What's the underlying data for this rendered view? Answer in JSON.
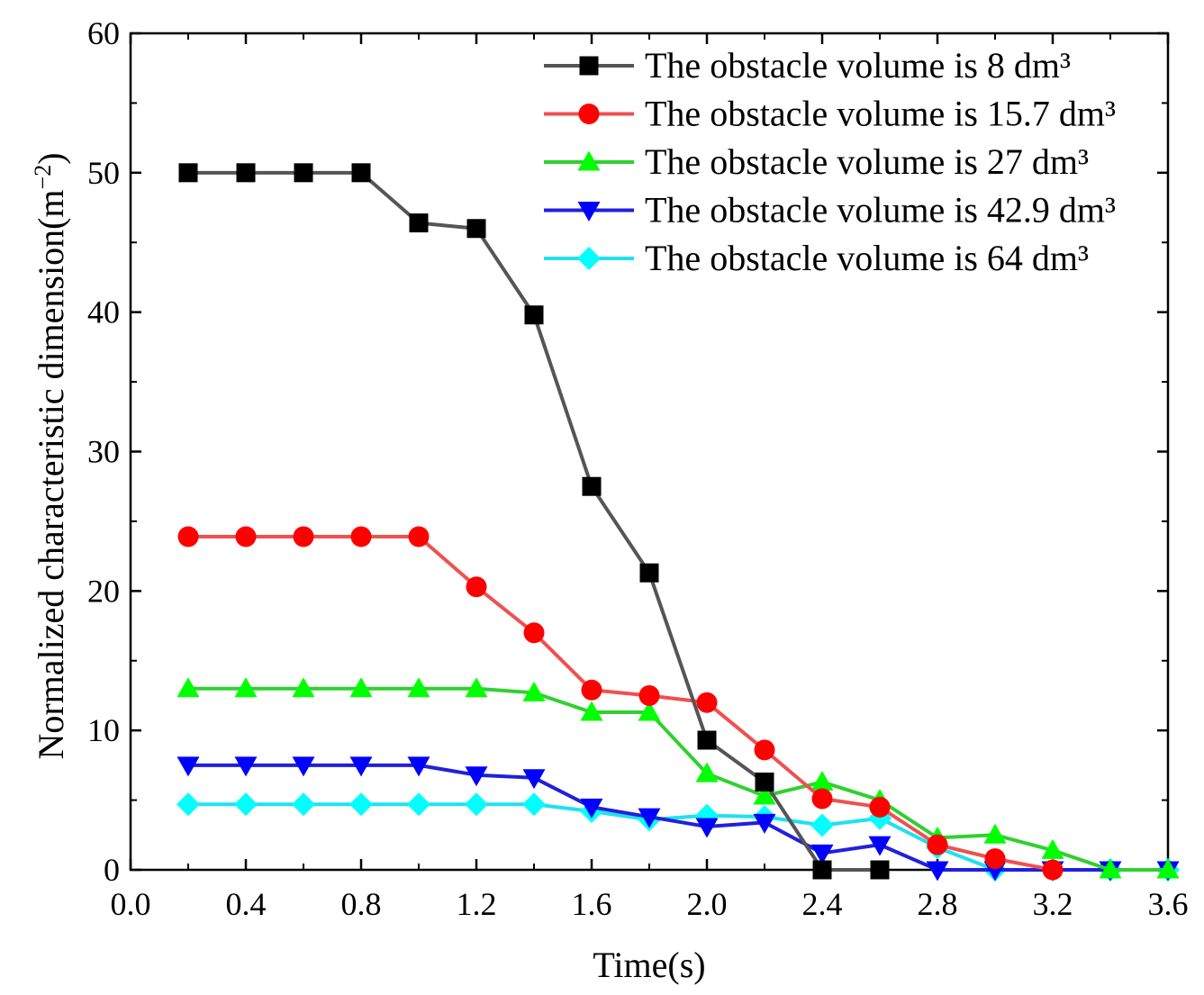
{
  "chart_data": {
    "type": "line",
    "title": "",
    "xlabel": "Time(s)",
    "ylabel": {
      "text": "Normalized characteristic dimension(m",
      "sup": "−2",
      "close": ")"
    },
    "xlim": [
      0.0,
      3.6
    ],
    "ylim": [
      0,
      60
    ],
    "xticks": [
      "0.0",
      "0.4",
      "0.8",
      "1.2",
      "1.6",
      "2.0",
      "2.4",
      "2.8",
      "3.2",
      "3.6"
    ],
    "yticks": [
      "0",
      "10",
      "20",
      "30",
      "40",
      "50",
      "60"
    ],
    "grid": false,
    "legend_position": "top-right",
    "x": [
      0.2,
      0.4,
      0.6,
      0.8,
      1.0,
      1.2,
      1.4,
      1.6,
      1.8,
      2.0,
      2.2,
      2.4,
      2.6,
      2.8,
      3.0,
      3.2,
      3.4,
      3.6
    ],
    "series": [
      {
        "name": "The obstacle volume is 8 dm³",
        "color": "#555555",
        "marker_color": "#000000",
        "marker": "square",
        "values": [
          50,
          50,
          50,
          50,
          46.4,
          46,
          39.8,
          27.5,
          21.3,
          9.3,
          6.3,
          0,
          0,
          null,
          null,
          null,
          null,
          null
        ]
      },
      {
        "name": "The obstacle volume is 15.7 dm³",
        "color": "#f05050",
        "marker_color": "#ff0000",
        "marker": "circle",
        "values": [
          23.9,
          23.9,
          23.9,
          23.9,
          23.9,
          20.3,
          17,
          12.9,
          12.5,
          12,
          8.6,
          5.1,
          4.5,
          1.8,
          0.8,
          0,
          null,
          null
        ]
      },
      {
        "name": "The obstacle volume is 27 dm³",
        "color": "#30d030",
        "marker_color": "#00ff00",
        "marker": "triangle-up",
        "values": [
          13,
          13,
          13,
          13,
          13,
          13,
          12.7,
          11.3,
          11.3,
          6.9,
          5.3,
          6.3,
          5,
          2.3,
          2.5,
          1.4,
          0,
          0
        ]
      },
      {
        "name": "The obstacle volume is 42.9 dm³",
        "color": "#2020dd",
        "marker_color": "#0000ff",
        "marker": "triangle-down",
        "values": [
          7.5,
          7.5,
          7.5,
          7.5,
          7.5,
          6.8,
          6.6,
          4.5,
          3.8,
          3.1,
          3.4,
          1.2,
          1.8,
          0,
          0,
          0,
          0,
          0
        ]
      },
      {
        "name": "The obstacle volume is 64 dm³",
        "color": "#20e0f0",
        "marker_color": "#00ffff",
        "marker": "diamond",
        "values": [
          4.7,
          4.7,
          4.7,
          4.7,
          4.7,
          4.7,
          4.7,
          4.2,
          3.6,
          3.9,
          3.8,
          3.2,
          3.7,
          1.6,
          0,
          0,
          0,
          0
        ]
      }
    ]
  }
}
